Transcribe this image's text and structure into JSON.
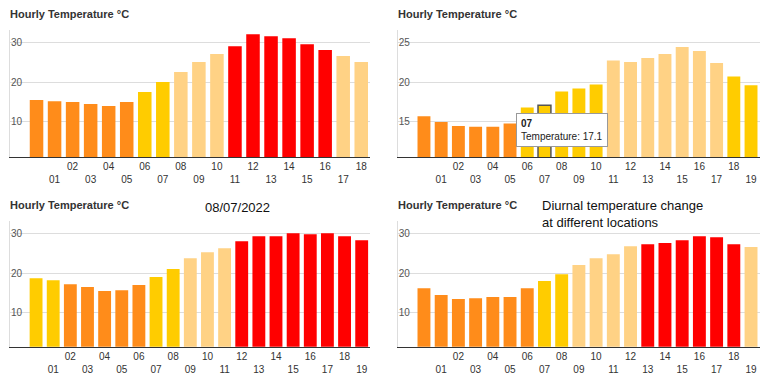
{
  "chart_data": [
    {
      "type": "bar",
      "title": "Hourly Temperature °C",
      "categories": [
        null,
        "01",
        "02",
        "03",
        "04",
        "05",
        "06",
        "07",
        "08",
        "09",
        "10",
        "11",
        "12",
        "13",
        "14",
        "15",
        "16",
        "17",
        "18"
      ],
      "values": [
        15.5,
        15.2,
        15.0,
        14.5,
        14.0,
        15.0,
        17.5,
        20.0,
        22.5,
        25.0,
        27.0,
        29.0,
        32.0,
        31.5,
        31.0,
        29.5,
        28.0,
        26.5,
        25.0
      ],
      "colors": [
        "#ff8c1a",
        "#ff8c1a",
        "#ff8c1a",
        "#ff8c1a",
        "#ff8c1a",
        "#ff8c1a",
        "#ffcc00",
        "#ffcc00",
        "#ffd285",
        "#ffd285",
        "#ffd285",
        "#ff0000",
        "#ff0000",
        "#ff0000",
        "#ff0000",
        "#ff0000",
        "#ff0000",
        "#ffd285",
        "#ffd285"
      ],
      "ylim": [
        1.2,
        33
      ],
      "yticks": [
        10,
        20,
        30
      ],
      "grid": true
    },
    {
      "type": "bar",
      "title": "Hourly Temperature °C",
      "categories": [
        null,
        "01",
        "02",
        "03",
        "04",
        "05",
        "06",
        "07",
        "08",
        "09",
        "10",
        "11",
        "12",
        "13",
        "14",
        "15",
        "16",
        "17",
        "18",
        "19"
      ],
      "values": [
        15.7,
        15.0,
        14.5,
        14.4,
        14.4,
        14.8,
        16.8,
        17.1,
        18.8,
        19.2,
        19.7,
        22.7,
        22.5,
        23.0,
        23.5,
        24.4,
        23.9,
        22.4,
        20.7,
        19.6
      ],
      "colors": [
        "#ff8c1a",
        "#ff8c1a",
        "#ff8c1a",
        "#ff8c1a",
        "#ff8c1a",
        "#ff8c1a",
        "#ffcc00",
        "#ffcc00",
        "#ffcc00",
        "#ffcc00",
        "#ffcc00",
        "#ffd285",
        "#ffd285",
        "#ffd285",
        "#ffd285",
        "#ffd285",
        "#ffd285",
        "#ffd285",
        "#ffcc00",
        "#ffcc00"
      ],
      "ylim": [
        10.6,
        26.5
      ],
      "yticks": [
        15,
        20,
        25
      ],
      "grid": true,
      "annotations": [
        {
          "category": "07",
          "text": [
            "07",
            "Temperature: 17.1"
          ]
        }
      ]
    },
    {
      "type": "bar",
      "title": "Hourly Temperature °C",
      "categories": [
        null,
        "01",
        "02",
        "03",
        "04",
        "05",
        "06",
        "07",
        "08",
        "09",
        "10",
        "11",
        "12",
        "13",
        "14",
        "15",
        "16",
        "17",
        "18",
        "19"
      ],
      "values": [
        18.7,
        18.2,
        17.2,
        16.5,
        15.5,
        15.7,
        17.0,
        19.0,
        21.0,
        23.7,
        25.2,
        26.2,
        28.0,
        29.2,
        29.2,
        30.0,
        29.7,
        30.0,
        29.2,
        28.2
      ],
      "colors": [
        "#ffcc00",
        "#ffcc00",
        "#ff8c1a",
        "#ff8c1a",
        "#ff8c1a",
        "#ff8c1a",
        "#ff8c1a",
        "#ffcc00",
        "#ffcc00",
        "#ffd285",
        "#ffd285",
        "#ffd285",
        "#ff0000",
        "#ff0000",
        "#ff0000",
        "#ff0000",
        "#ff0000",
        "#ff0000",
        "#ff0000",
        "#ff0000"
      ],
      "ylim": [
        1.5,
        33
      ],
      "yticks": [
        10,
        20,
        30
      ],
      "grid": true,
      "annotations": [
        {
          "text": [
            "08/07/2022"
          ]
        }
      ]
    },
    {
      "type": "bar",
      "title": "Hourly Temperature °C",
      "categories": [
        null,
        "01",
        "02",
        "03",
        "04",
        "05",
        "06",
        "07",
        "08",
        "09",
        "10",
        "11",
        "12",
        "13",
        "14",
        "15",
        "16",
        "17",
        "18",
        "19"
      ],
      "values": [
        16.2,
        14.5,
        13.5,
        13.7,
        14.0,
        14.0,
        16.2,
        18.0,
        19.7,
        22.0,
        23.7,
        24.7,
        26.7,
        27.2,
        27.5,
        28.2,
        29.2,
        29.0,
        27.2,
        26.5
      ],
      "colors": [
        "#ff8c1a",
        "#ff8c1a",
        "#ff8c1a",
        "#ff8c1a",
        "#ff8c1a",
        "#ff8c1a",
        "#ff8c1a",
        "#ffcc00",
        "#ffcc00",
        "#ffd285",
        "#ffd285",
        "#ffd285",
        "#ffd285",
        "#ff0000",
        "#ff0000",
        "#ff0000",
        "#ff0000",
        "#ff0000",
        "#ff0000",
        "#ffd285"
      ],
      "ylim": [
        1.5,
        33
      ],
      "yticks": [
        10,
        20,
        30
      ],
      "grid": true,
      "annotations": [
        {
          "text": [
            "Diurnal temperature change",
            "at different locations"
          ]
        }
      ]
    }
  ]
}
